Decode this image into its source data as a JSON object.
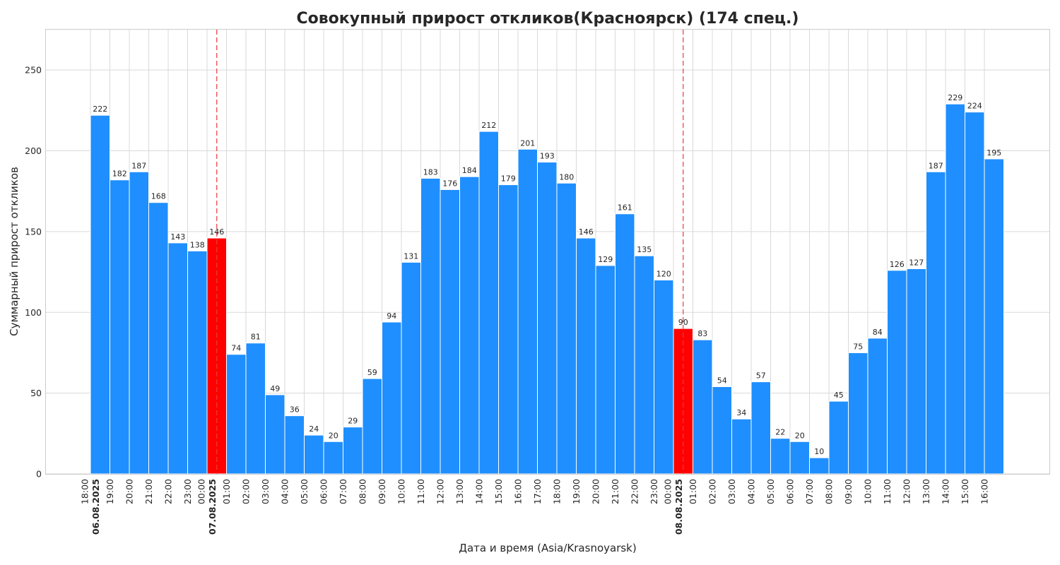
{
  "chart_data": {
    "type": "bar",
    "title": "Совокупный прирост откликов(Красноярск) (174 спец.)",
    "xlabel": "Дата и время (Asia/Krasnoyarsk)",
    "ylabel": "Суммарный прирост откликов",
    "ylim": [
      0,
      275
    ],
    "yticks": [
      0,
      50,
      100,
      150,
      200,
      250
    ],
    "grid": true,
    "categories": [
      "18:00\n06.08.2025",
      "19:00",
      "20:00",
      "21:00",
      "22:00",
      "23:00",
      "00:00\n07.08.2025",
      "01:00",
      "02:00",
      "03:00",
      "04:00",
      "05:00",
      "06:00",
      "07:00",
      "08:00",
      "09:00",
      "10:00",
      "11:00",
      "12:00",
      "13:00",
      "14:00",
      "15:00",
      "16:00",
      "17:00",
      "18:00",
      "19:00",
      "20:00",
      "21:00",
      "22:00",
      "23:00",
      "00:00\n08.08.2025",
      "01:00",
      "02:00",
      "03:00",
      "04:00",
      "05:00",
      "06:00",
      "07:00",
      "08:00",
      "09:00",
      "10:00",
      "11:00",
      "12:00",
      "13:00",
      "14:00",
      "15:00",
      "16:00"
    ],
    "values": [
      222,
      182,
      187,
      168,
      143,
      138,
      146,
      74,
      81,
      49,
      36,
      24,
      20,
      29,
      59,
      94,
      131,
      183,
      176,
      184,
      212,
      179,
      201,
      193,
      180,
      146,
      129,
      161,
      135,
      120,
      90,
      83,
      54,
      34,
      57,
      22,
      20,
      10,
      45,
      75,
      84,
      126,
      127,
      187,
      229,
      224,
      195
    ],
    "highlight_indices": [
      6,
      30
    ],
    "day_boundary_indices": [
      6,
      30
    ],
    "colors": {
      "bar": "#1f8fff",
      "highlight": "#ff0000",
      "day_line": "#e8383d"
    }
  }
}
